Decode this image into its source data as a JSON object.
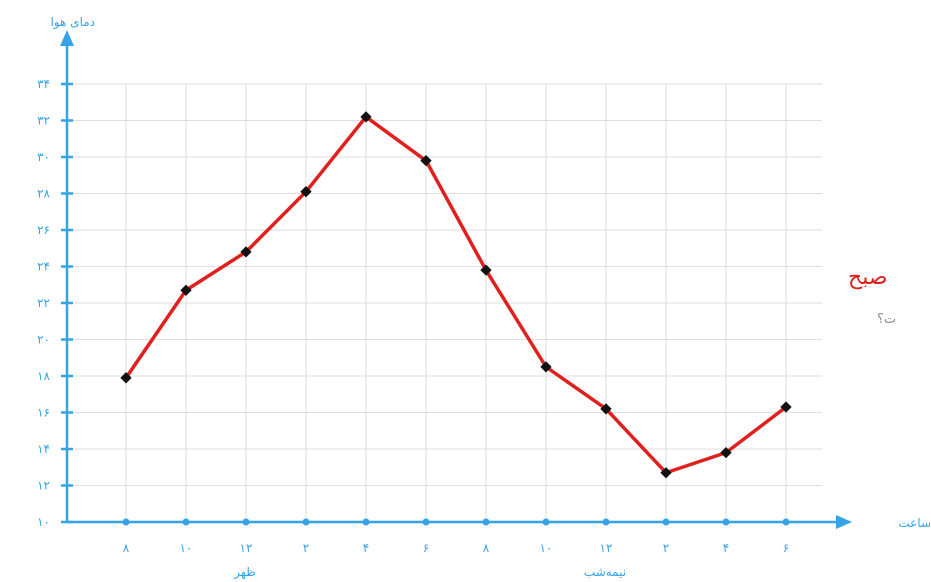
{
  "chart_data": {
    "type": "line",
    "ylabel": "دمای هوا",
    "xlabel": "ساعت",
    "x_labels": [
      "۸",
      "۱۰",
      "۱۲",
      "۲",
      "۴",
      "۶",
      "۸",
      "۱۰",
      "۱۲",
      "۲",
      "۴",
      "۶"
    ],
    "x_group_labels": [
      "ظهر",
      "نیمه‌شب"
    ],
    "y_ticks": [
      "۱۰",
      "۱۲",
      "۱۴",
      "۱۶",
      "۱۸",
      "۲۰",
      "۲۲",
      "۲۴",
      "۲۶",
      "۲۸",
      "۳۰",
      "۳۲",
      "۳۴"
    ],
    "ylim": [
      10,
      34
    ],
    "values": [
      17.9,
      22.7,
      24.8,
      28.1,
      32.2,
      29.8,
      23.8,
      18.5,
      16.2,
      12.7,
      13.8,
      16.3
    ],
    "grid": true,
    "colors": {
      "line": "#e0201d",
      "axis": "#36a3e6",
      "grid": "#dedede",
      "marker": "#111111"
    }
  },
  "side_text": {
    "red": "صبح",
    "gray": "ت؟"
  }
}
